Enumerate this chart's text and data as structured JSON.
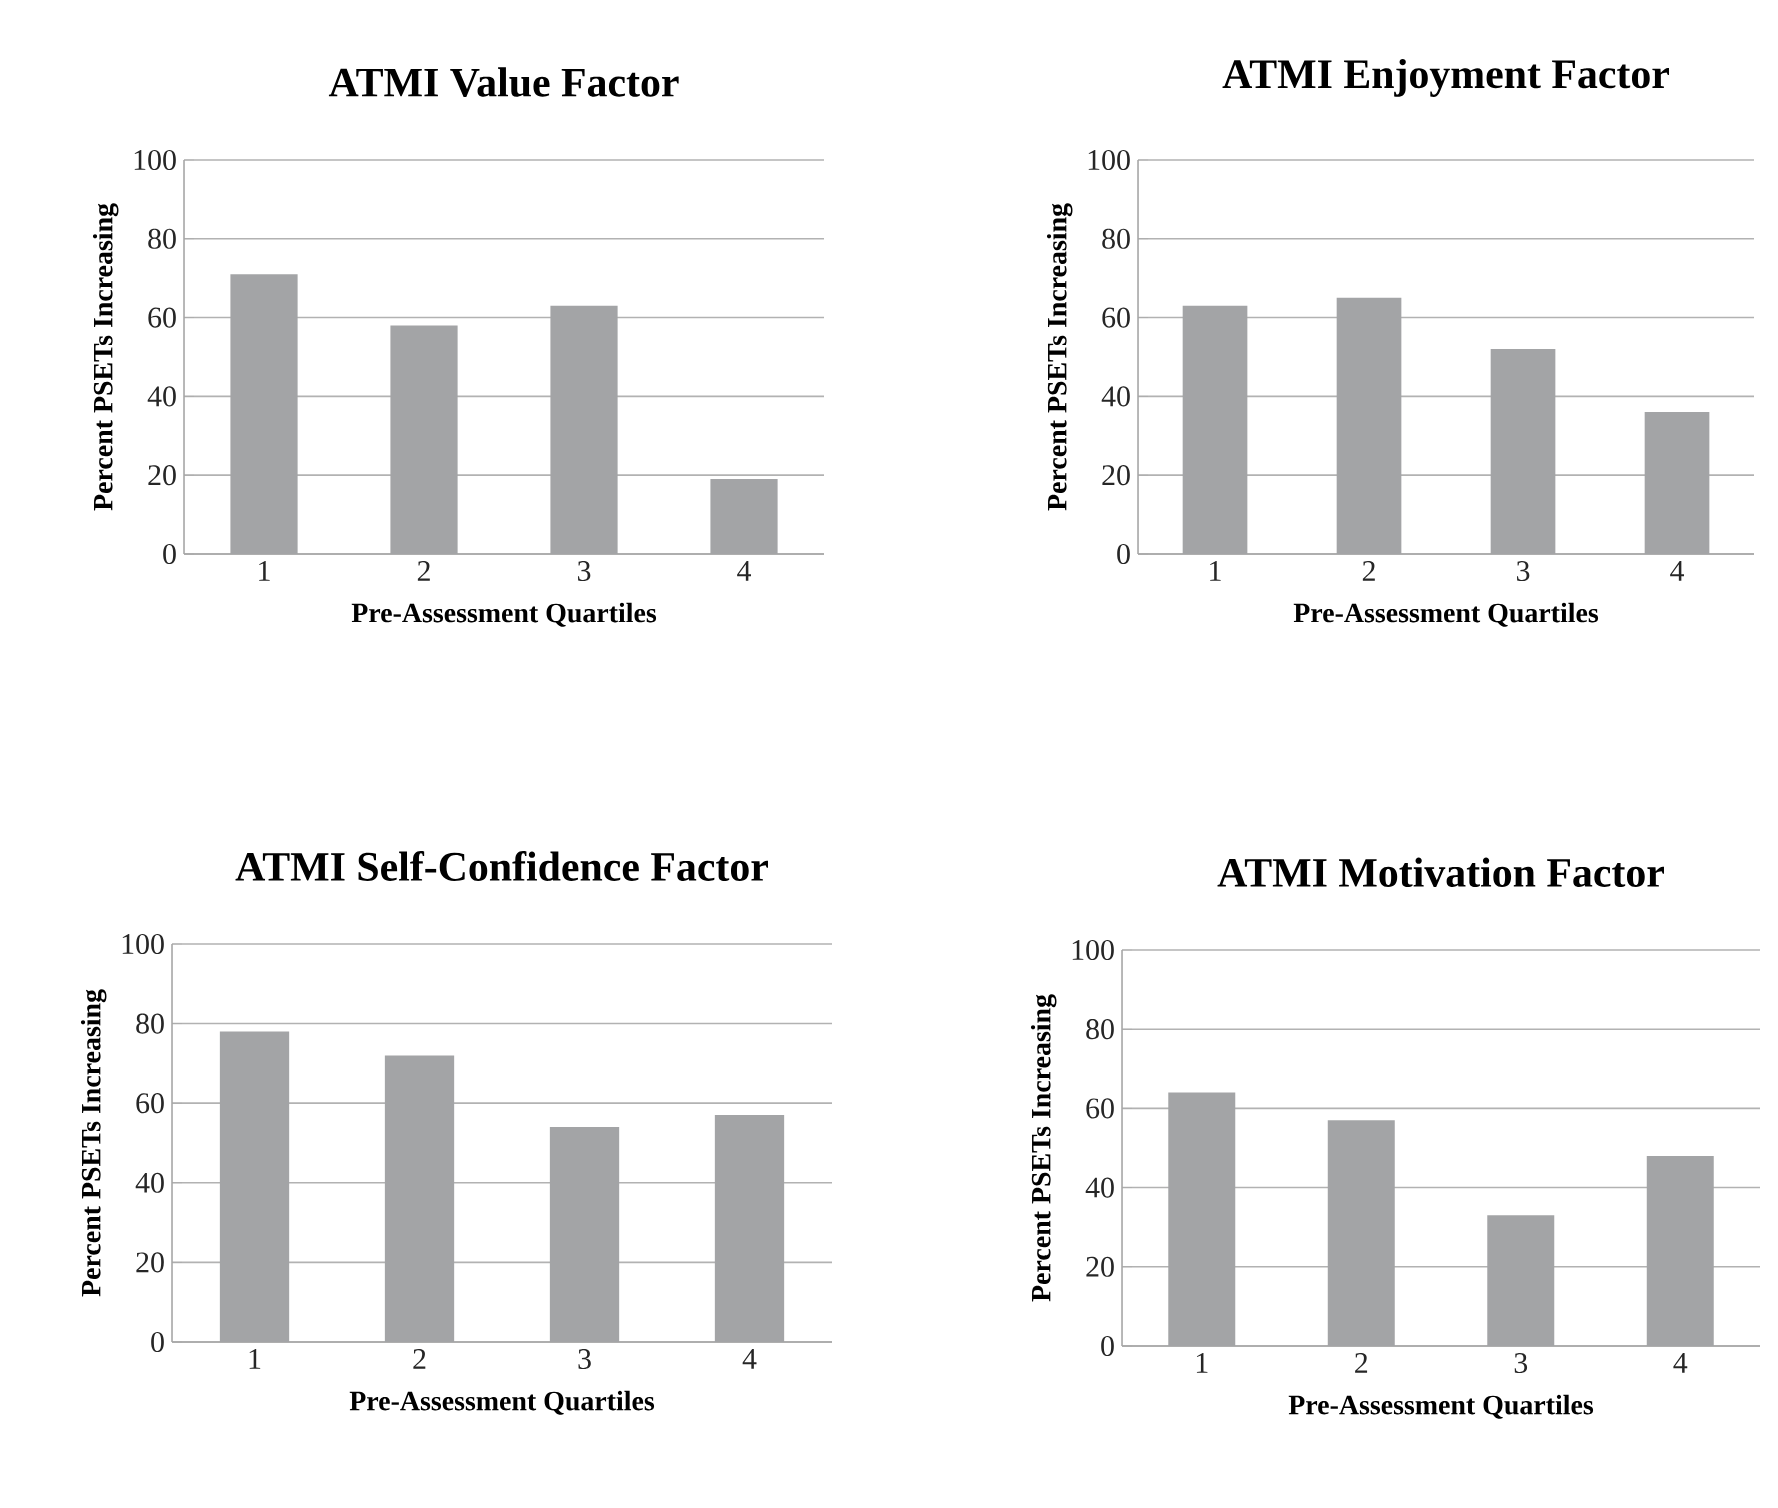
{
  "chart_data": [
    {
      "type": "bar",
      "title": "ATMI Value Factor",
      "xlabel": "Pre-Assessment Quartiles",
      "ylabel": "Percent PSETs Increasing",
      "categories": [
        "1",
        "2",
        "3",
        "4"
      ],
      "values": [
        71,
        58,
        63,
        19
      ],
      "color": "#a3a4a6",
      "ylim": [
        0,
        100
      ],
      "yticks": [
        0,
        20,
        40,
        60,
        80,
        100
      ],
      "grid": "y"
    },
    {
      "type": "bar",
      "title": "ATMI Enjoyment Factor",
      "xlabel": "Pre-Assessment Quartiles",
      "ylabel": "Percent PSETs Increasing",
      "categories": [
        "1",
        "2",
        "3",
        "4"
      ],
      "values": [
        63,
        65,
        52,
        36
      ],
      "color": "#a3a4a6",
      "ylim": [
        0,
        100
      ],
      "yticks": [
        0,
        20,
        40,
        60,
        80,
        100
      ],
      "grid": "y"
    },
    {
      "type": "bar",
      "title": "ATMI Self-Confidence Factor",
      "xlabel": "Pre-Assessment Quartiles",
      "ylabel": "Percent PSETs Increasing",
      "categories": [
        "1",
        "2",
        "3",
        "4"
      ],
      "values": [
        78,
        72,
        54,
        57
      ],
      "color": "#a3a4a6",
      "ylim": [
        0,
        100
      ],
      "yticks": [
        0,
        20,
        40,
        60,
        80,
        100
      ],
      "grid": "y"
    },
    {
      "type": "bar",
      "title": "ATMI Motivation Factor",
      "xlabel": "Pre-Assessment Quartiles",
      "ylabel": "Percent PSETs Increasing",
      "categories": [
        "1",
        "2",
        "3",
        "4"
      ],
      "values": [
        64,
        57,
        33,
        48
      ],
      "color": "#a3a4a6",
      "ylim": [
        0,
        100
      ],
      "yticks": [
        0,
        20,
        40,
        60,
        80,
        100
      ],
      "grid": "y"
    }
  ]
}
